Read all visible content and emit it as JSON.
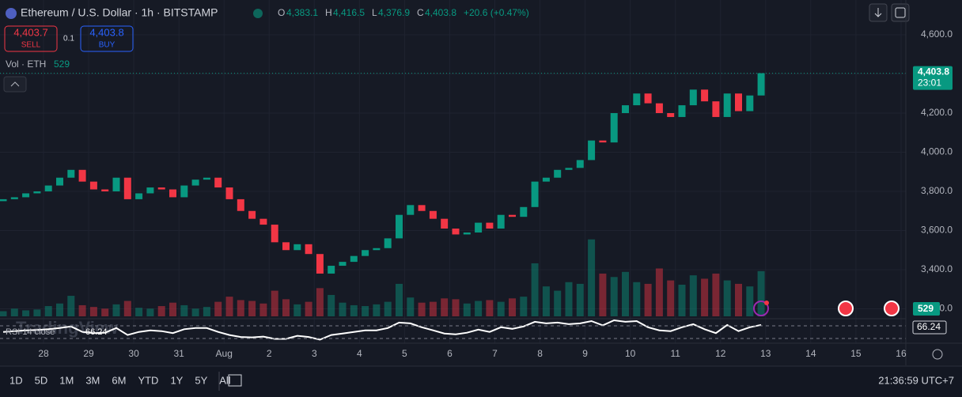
{
  "header": {
    "symbol": "Ethereum / U.S. Dollar · 1h · BITSTAMP",
    "o_key": "O",
    "o": "4,383.1",
    "h_key": "H",
    "h": "4,416.5",
    "l_key": "L",
    "l": "4,376.9",
    "c_key": "C",
    "c": "4,403.8",
    "change": "+20.6 (+0.47%)"
  },
  "trade": {
    "sell_price": "4,403.7",
    "sell": "SELL",
    "spread": "0.1",
    "buy_price": "4,403.8",
    "buy": "BUY"
  },
  "watermark": "TradingView",
  "timeframes": [
    "1D",
    "5D",
    "1M",
    "3M",
    "6M",
    "YTD",
    "1Y",
    "5Y",
    "All"
  ],
  "clock": "21:36:59 UTC+7",
  "chart_data": {
    "type": "candlestick",
    "categories": [
      "28",
      "29",
      "30",
      "31",
      "Aug",
      "2",
      "3",
      "4",
      "5",
      "6",
      "7",
      "8",
      "9",
      "10",
      "11",
      "12",
      "13",
      "14",
      "15",
      "16"
    ],
    "ylim": [
      3161.6,
      4777.8
    ],
    "yticks": [
      {
        "value": 4600,
        "label": "4,600.0"
      },
      {
        "value": 4400,
        "label": "4,400.0"
      },
      {
        "value": 4200,
        "label": "4,200.0"
      },
      {
        "value": 4000,
        "label": "4,000.0"
      },
      {
        "value": 3800,
        "label": "3,800.0"
      },
      {
        "value": 3600,
        "label": "3,600.0"
      },
      {
        "value": 3400,
        "label": "3,400.0"
      },
      {
        "value": 3200,
        "label": "3,200.0"
      }
    ],
    "up_color": "#089981",
    "down_color": "#f23645",
    "opens": [
      3750,
      3760,
      3770,
      3790,
      3800,
      3830,
      3870,
      3910,
      3850,
      3810,
      3800,
      3870,
      3760,
      3790,
      3820,
      3810,
      3770,
      3830,
      3860,
      3870,
      3820,
      3760,
      3700,
      3660,
      3630,
      3540,
      3500,
      3530,
      3480,
      3380,
      3420,
      3440,
      3470,
      3500,
      3510,
      3560,
      3680,
      3730,
      3700,
      3660,
      3610,
      3580,
      3590,
      3640,
      3610,
      3680,
      3670,
      3720,
      3850,
      3870,
      3910,
      3920,
      3960,
      4060,
      4050,
      4200,
      4240,
      4300,
      4250,
      4200,
      4180,
      4240,
      4320,
      4260,
      4180,
      4300,
      4210,
      4290
    ],
    "closes": [
      3760,
      3770,
      3790,
      3800,
      3830,
      3870,
      3910,
      3850,
      3810,
      3800,
      3870,
      3760,
      3790,
      3820,
      3810,
      3770,
      3830,
      3860,
      3870,
      3820,
      3760,
      3700,
      3660,
      3630,
      3540,
      3500,
      3530,
      3480,
      3380,
      3420,
      3440,
      3470,
      3500,
      3510,
      3560,
      3680,
      3730,
      3700,
      3660,
      3610,
      3580,
      3590,
      3640,
      3610,
      3680,
      3670,
      3720,
      3850,
      3870,
      3910,
      3920,
      3960,
      4060,
      4050,
      4200,
      4240,
      4300,
      4250,
      4200,
      4180,
      4240,
      4320,
      4260,
      4180,
      4300,
      4210,
      4290,
      4403.8
    ],
    "last_price": {
      "value": 4403.8,
      "label": "4,403.8"
    },
    "countdown": "23:01",
    "volume": {
      "name": "Vol · ETH",
      "vlim": [
        0,
        3700
      ],
      "values": [
        60,
        90,
        70,
        80,
        120,
        150,
        240,
        130,
        110,
        90,
        140,
        180,
        100,
        90,
        120,
        160,
        130,
        90,
        110,
        170,
        230,
        190,
        180,
        150,
        300,
        200,
        140,
        170,
        330,
        250,
        160,
        130,
        120,
        140,
        170,
        380,
        220,
        160,
        170,
        210,
        200,
        150,
        180,
        190,
        170,
        210,
        230,
        620,
        350,
        300,
        400,
        380,
        900,
        500,
        460,
        520,
        400,
        380,
        560,
        420,
        370,
        480,
        440,
        500,
        420,
        380,
        350,
        529
      ]
    },
    "rsi": {
      "name": "RSI 14 close",
      "color": "#ffffff",
      "rlim": [
        25,
        80
      ],
      "values": [
        48,
        50,
        52,
        53,
        55,
        58,
        62,
        48,
        45,
        46,
        58,
        40,
        48,
        52,
        50,
        45,
        55,
        58,
        58,
        48,
        40,
        35,
        34,
        36,
        30,
        30,
        38,
        35,
        28,
        40,
        44,
        48,
        52,
        52,
        58,
        72,
        70,
        60,
        52,
        44,
        42,
        46,
        54,
        48,
        60,
        56,
        62,
        74,
        70,
        72,
        68,
        70,
        76,
        65,
        78,
        74,
        76,
        60,
        52,
        50,
        60,
        68,
        55,
        45,
        66,
        50,
        60,
        66.24
      ]
    }
  }
}
